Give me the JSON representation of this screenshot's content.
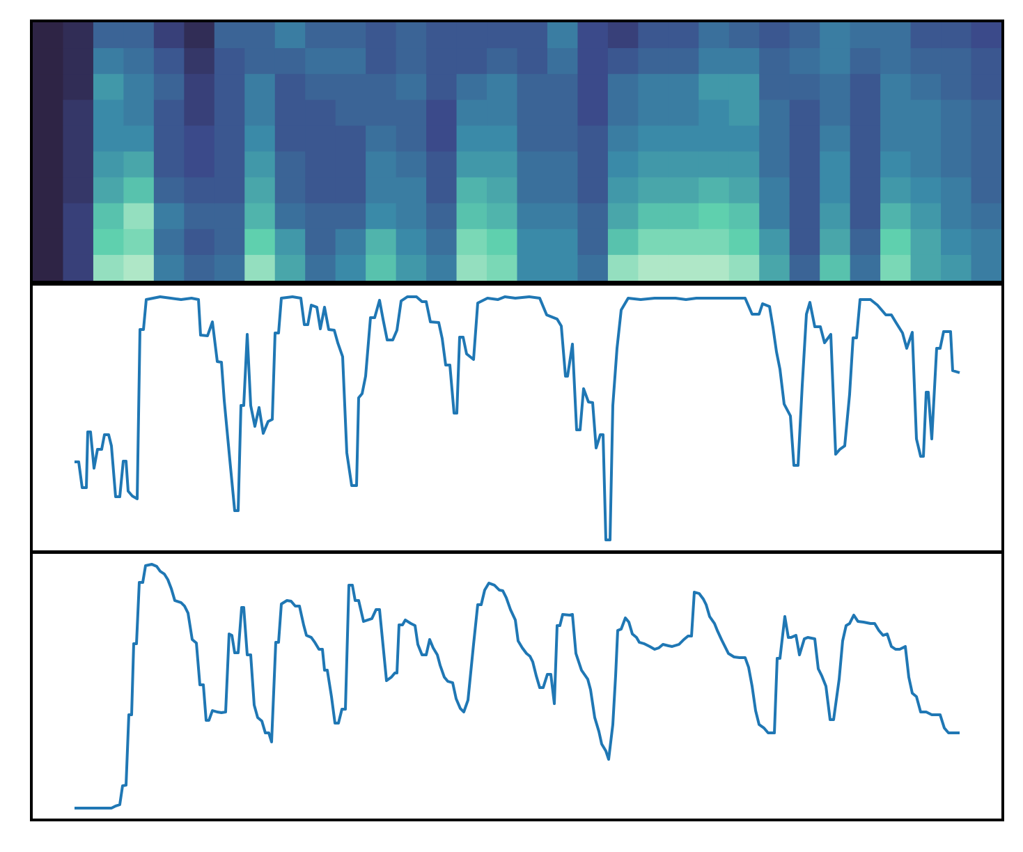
{
  "chart_data": [
    {
      "type": "heatmap",
      "zlim": [
        0,
        1
      ],
      "colormap": [
        "#2b1a34",
        "#3b4a8a",
        "#3a8aa8",
        "#5fd0ae",
        "#e4f6d8"
      ],
      "z": [
        [
          0.05,
          0.05,
          0.05,
          0.05,
          0.05,
          0.05,
          0.05,
          0.05,
          0.05,
          0.05
        ],
        [
          0.1,
          0.1,
          0.1,
          0.15,
          0.15,
          0.15,
          0.15,
          0.2,
          0.2,
          0.2
        ],
        [
          0.35,
          0.45,
          0.55,
          0.5,
          0.5,
          0.55,
          0.6,
          0.7,
          0.75,
          0.85
        ],
        [
          0.35,
          0.4,
          0.45,
          0.45,
          0.5,
          0.6,
          0.7,
          0.85,
          0.8,
          0.9
        ],
        [
          0.2,
          0.3,
          0.35,
          0.3,
          0.3,
          0.3,
          0.35,
          0.45,
          0.4,
          0.45
        ],
        [
          0.1,
          0.15,
          0.2,
          0.2,
          0.25,
          0.25,
          0.3,
          0.35,
          0.3,
          0.35
        ],
        [
          0.35,
          0.3,
          0.3,
          0.3,
          0.3,
          0.3,
          0.3,
          0.35,
          0.35,
          0.4
        ],
        [
          0.35,
          0.35,
          0.45,
          0.45,
          0.5,
          0.55,
          0.6,
          0.65,
          0.75,
          0.85
        ],
        [
          0.45,
          0.35,
          0.3,
          0.3,
          0.3,
          0.35,
          0.35,
          0.4,
          0.55,
          0.6
        ],
        [
          0.35,
          0.4,
          0.35,
          0.3,
          0.3,
          0.3,
          0.3,
          0.35,
          0.35,
          0.4
        ],
        [
          0.35,
          0.4,
          0.35,
          0.35,
          0.3,
          0.3,
          0.3,
          0.35,
          0.45,
          0.5
        ],
        [
          0.3,
          0.3,
          0.35,
          0.35,
          0.4,
          0.45,
          0.45,
          0.5,
          0.65,
          0.7
        ],
        [
          0.35,
          0.35,
          0.4,
          0.35,
          0.35,
          0.4,
          0.45,
          0.45,
          0.5,
          0.55
        ],
        [
          0.3,
          0.3,
          0.3,
          0.25,
          0.25,
          0.3,
          0.3,
          0.35,
          0.4,
          0.45
        ],
        [
          0.3,
          0.3,
          0.4,
          0.45,
          0.5,
          0.55,
          0.65,
          0.7,
          0.8,
          0.85
        ],
        [
          0.3,
          0.35,
          0.45,
          0.45,
          0.5,
          0.55,
          0.6,
          0.65,
          0.75,
          0.8
        ],
        [
          0.3,
          0.3,
          0.35,
          0.35,
          0.35,
          0.4,
          0.4,
          0.45,
          0.5,
          0.5
        ],
        [
          0.45,
          0.4,
          0.35,
          0.35,
          0.35,
          0.4,
          0.4,
          0.45,
          0.5,
          0.5
        ],
        [
          0.25,
          0.25,
          0.25,
          0.25,
          0.3,
          0.3,
          0.3,
          0.35,
          0.35,
          0.4
        ],
        [
          0.2,
          0.3,
          0.4,
          0.4,
          0.45,
          0.5,
          0.55,
          0.6,
          0.7,
          0.85
        ],
        [
          0.3,
          0.35,
          0.45,
          0.45,
          0.5,
          0.55,
          0.6,
          0.7,
          0.8,
          0.9
        ],
        [
          0.3,
          0.35,
          0.45,
          0.45,
          0.5,
          0.55,
          0.6,
          0.7,
          0.8,
          0.9
        ],
        [
          0.4,
          0.45,
          0.55,
          0.5,
          0.5,
          0.55,
          0.65,
          0.75,
          0.8,
          0.9
        ],
        [
          0.35,
          0.45,
          0.55,
          0.55,
          0.5,
          0.55,
          0.6,
          0.7,
          0.75,
          0.85
        ],
        [
          0.3,
          0.35,
          0.35,
          0.4,
          0.4,
          0.4,
          0.45,
          0.45,
          0.55,
          0.6
        ],
        [
          0.35,
          0.4,
          0.35,
          0.3,
          0.3,
          0.3,
          0.3,
          0.3,
          0.3,
          0.35
        ],
        [
          0.45,
          0.45,
          0.4,
          0.4,
          0.45,
          0.5,
          0.5,
          0.55,
          0.6,
          0.7
        ],
        [
          0.4,
          0.35,
          0.3,
          0.3,
          0.3,
          0.3,
          0.3,
          0.3,
          0.35,
          0.4
        ],
        [
          0.4,
          0.4,
          0.45,
          0.45,
          0.45,
          0.5,
          0.55,
          0.65,
          0.75,
          0.8
        ],
        [
          0.3,
          0.35,
          0.4,
          0.45,
          0.45,
          0.45,
          0.5,
          0.55,
          0.6,
          0.6
        ],
        [
          0.3,
          0.35,
          0.35,
          0.4,
          0.4,
          0.4,
          0.45,
          0.45,
          0.5,
          0.55
        ],
        [
          0.25,
          0.3,
          0.3,
          0.35,
          0.35,
          0.35,
          0.35,
          0.4,
          0.45,
          0.45
        ]
      ]
    },
    {
      "type": "line",
      "color": "#1f77b4",
      "xlim": [
        -62,
        1333
      ],
      "ylim": [
        0,
        380
      ],
      "x": [
        0,
        6,
        11,
        17,
        19,
        23,
        28,
        33,
        39,
        43,
        49,
        53,
        59,
        65,
        70,
        74,
        77,
        83,
        90,
        94,
        99,
        103,
        123,
        138,
        153,
        168,
        178,
        181,
        191,
        198,
        205,
        211,
        215,
        223,
        230,
        235,
        239,
        243,
        248,
        253,
        259,
        265,
        271,
        278,
        284,
        288,
        293,
        297,
        313,
        325,
        330,
        335,
        340,
        348,
        353,
        359,
        365,
        373,
        378,
        385,
        391,
        398,
        405,
        408,
        413,
        418,
        425,
        431,
        438,
        443,
        449,
        457,
        463,
        469,
        478,
        491,
        499,
        505,
        511,
        523,
        528,
        533,
        539,
        545,
        549,
        553,
        558,
        563,
        573,
        579,
        593,
        608,
        618,
        633,
        653,
        668,
        678,
        693,
        699,
        705,
        708,
        715,
        721,
        726,
        731,
        738,
        744,
        749,
        755,
        759,
        763,
        769,
        773,
        779,
        785,
        795,
        813,
        833,
        863,
        878,
        893,
        933,
        963,
        973,
        983,
        988,
        998,
        1003,
        1008,
        1013,
        1019,
        1028,
        1033,
        1039,
        1045,
        1051,
        1056,
        1063,
        1071,
        1077,
        1086,
        1093,
        1099,
        1106,
        1113,
        1118,
        1123,
        1128,
        1143,
        1153,
        1165,
        1173,
        1179,
        1189,
        1195,
        1203,
        1209,
        1215,
        1219,
        1223,
        1226,
        1231,
        1238,
        1243,
        1248,
        1258,
        1261,
        1271
      ],
      "values": [
        127,
        127,
        90,
        90,
        170,
        170,
        118,
        145,
        145,
        166,
        166,
        150,
        77,
        77,
        128,
        128,
        85,
        78,
        74,
        317,
        317,
        360,
        364,
        362,
        360,
        362,
        360,
        309,
        308,
        328,
        271,
        270,
        215,
        130,
        57,
        57,
        208,
        208,
        310,
        208,
        178,
        205,
        168,
        185,
        188,
        312,
        312,
        362,
        364,
        362,
        324,
        324,
        352,
        349,
        318,
        349,
        317,
        316,
        298,
        278,
        140,
        93,
        93,
        219,
        225,
        250,
        334,
        334,
        359,
        332,
        302,
        302,
        316,
        358,
        364,
        364,
        357,
        357,
        328,
        327,
        304,
        266,
        266,
        197,
        197,
        306,
        306,
        282,
        274,
        355,
        362,
        360,
        364,
        362,
        364,
        362,
        338,
        332,
        322,
        250,
        250,
        296,
        173,
        173,
        232,
        213,
        212,
        147,
        166,
        166,
        15,
        15,
        208,
        290,
        345,
        362,
        360,
        362,
        362,
        360,
        362,
        362,
        362,
        339,
        339,
        354,
        350,
        320,
        285,
        260,
        210,
        193,
        122,
        122,
        237,
        339,
        356,
        321,
        321,
        298,
        310,
        138,
        145,
        150,
        224,
        305,
        305,
        360,
        360,
        352,
        338,
        338,
        328,
        312,
        290,
        313,
        160,
        135,
        135,
        227,
        227,
        160,
        290,
        290,
        314,
        314,
        258,
        255
      ]
    },
    {
      "type": "line",
      "color": "#1f77b4",
      "xlim": [
        -62,
        1333
      ],
      "ylim": [
        0,
        380
      ],
      "x": [
        0,
        53,
        59,
        65,
        69,
        74,
        78,
        82,
        85,
        89,
        93,
        98,
        102,
        111,
        118,
        123,
        129,
        134,
        139,
        144,
        153,
        158,
        163,
        169,
        175,
        180,
        185,
        189,
        193,
        198,
        205,
        211,
        217,
        222,
        226,
        230,
        235,
        240,
        243,
        248,
        253,
        258,
        263,
        269,
        274,
        279,
        283,
        289,
        293,
        297,
        305,
        311,
        317,
        323,
        329,
        333,
        340,
        345,
        351,
        356,
        359,
        363,
        369,
        374,
        379,
        384,
        389,
        394,
        399,
        403,
        408,
        415,
        421,
        427,
        433,
        438,
        443,
        448,
        455,
        460,
        463,
        466,
        471,
        475,
        483,
        489,
        493,
        499,
        505,
        510,
        515,
        521,
        525,
        531,
        536,
        543,
        548,
        554,
        559,
        565,
        573,
        579,
        584,
        589,
        595,
        603,
        610,
        615,
        620,
        626,
        633,
        637,
        643,
        649,
        654,
        658,
        663,
        668,
        673,
        679,
        684,
        689,
        693,
        697,
        701,
        711,
        715,
        720,
        728,
        737,
        741,
        747,
        753,
        757,
        763,
        767,
        773,
        777,
        780,
        785,
        791,
        796,
        801,
        807,
        811,
        818,
        826,
        833,
        839,
        845,
        853,
        858,
        868,
        875,
        881,
        886,
        890,
        897,
        903,
        907,
        912,
        919,
        923,
        929,
        935,
        939,
        947,
        955,
        963,
        968,
        973,
        978,
        983,
        990,
        996,
        1005,
        1009,
        1013,
        1020,
        1025,
        1029,
        1036,
        1041,
        1048,
        1053,
        1063,
        1068,
        1073,
        1079,
        1085,
        1090,
        1098,
        1103,
        1108,
        1113,
        1119,
        1125,
        1133,
        1143,
        1149,
        1155,
        1161,
        1167,
        1173,
        1179,
        1185,
        1193,
        1198,
        1203,
        1209,
        1215,
        1223,
        1231,
        1243,
        1249,
        1255,
        1271
      ],
      "values": [
        15,
        15,
        18,
        20,
        47,
        48,
        149,
        149,
        251,
        251,
        339,
        339,
        363,
        365,
        362,
        355,
        351,
        343,
        330,
        313,
        310,
        305,
        295,
        257,
        252,
        192,
        192,
        141,
        141,
        155,
        153,
        152,
        153,
        265,
        263,
        238,
        238,
        303,
        303,
        235,
        235,
        163,
        145,
        140,
        123,
        123,
        110,
        253,
        253,
        308,
        313,
        312,
        305,
        305,
        278,
        263,
        260,
        253,
        243,
        243,
        213,
        213,
        175,
        137,
        137,
        157,
        157,
        335,
        335,
        313,
        313,
        283,
        285,
        287,
        300,
        300,
        249,
        198,
        203,
        209,
        209,
        278,
        278,
        285,
        280,
        277,
        250,
        235,
        235,
        257,
        245,
        235,
        220,
        203,
        197,
        195,
        172,
        158,
        153,
        170,
        250,
        307,
        307,
        328,
        338,
        335,
        328,
        327,
        317,
        300,
        285,
        255,
        245,
        237,
        233,
        225,
        205,
        188,
        188,
        207,
        207,
        165,
        277,
        277,
        293,
        292,
        293,
        237,
        213,
        200,
        185,
        145,
        125,
        107,
        97,
        85,
        135,
        205,
        270,
        272,
        288,
        282,
        265,
        260,
        253,
        251,
        247,
        243,
        245,
        250,
        248,
        247,
        250,
        257,
        262,
        262,
        325,
        323,
        315,
        307,
        290,
        280,
        270,
        257,
        245,
        237,
        232,
        231,
        231,
        217,
        190,
        155,
        135,
        130,
        123,
        123,
        230,
        230,
        290,
        260,
        260,
        263,
        235,
        258,
        260,
        258,
        215,
        205,
        190,
        142,
        142,
        200,
        255,
        277,
        280,
        292,
        283,
        282,
        280,
        280,
        270,
        263,
        265,
        247,
        243,
        243,
        247,
        203,
        180,
        175,
        153,
        153,
        149,
        149,
        130,
        123,
        123
      ]
    }
  ]
}
